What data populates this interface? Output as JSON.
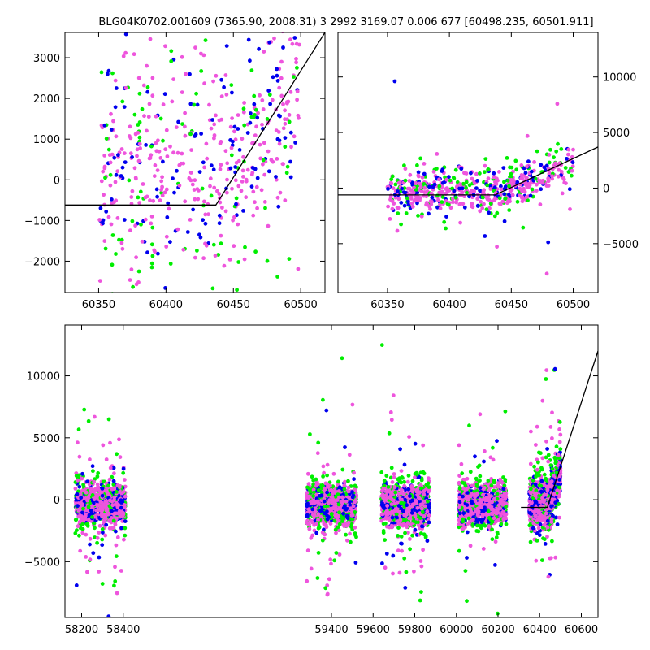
{
  "title": "BLG04K0702.001609 (7365.90, 2008.31)    3 2992 3169.07 0.006 677 [60498.235, 60501.911]",
  "colors": {
    "series_1": "#0000ee",
    "series_2": "#00ee00",
    "series_3": "#ee55dd",
    "model": "#000000"
  },
  "chart_data": [
    {
      "type": "scatter",
      "panel": "top-left",
      "xlim": [
        60325,
        60518
      ],
      "ylim": [
        -2770,
        3620
      ],
      "xticks": [
        60350,
        60400,
        60450,
        60500
      ],
      "xticklabels": [
        "60350",
        "60400",
        "60450",
        "60500"
      ],
      "yticks": [
        -2000,
        -1000,
        0,
        1000,
        2000,
        3000
      ],
      "yticklabels": [
        "−2000",
        "−1000",
        "0",
        "1000",
        "2000",
        "3000"
      ],
      "yaxis_side": "left",
      "model": [
        [
          60325,
          -620
        ],
        [
          60437,
          -620
        ],
        [
          60518,
          3620
        ]
      ],
      "clusters": [
        {
          "x_range": [
            60350,
            60500
          ],
          "y_center": 200,
          "y_spread": 1300,
          "trend": true
        }
      ]
    },
    {
      "type": "scatter",
      "panel": "top-right",
      "xlim": [
        60310,
        60520
      ],
      "ylim": [
        -9400,
        14000
      ],
      "xticks": [
        60350,
        60400,
        60450,
        60500
      ],
      "xticklabels": [
        "60350",
        "60400",
        "60450",
        "60500"
      ],
      "yticks": [
        -5000,
        0,
        5000,
        10000
      ],
      "yticklabels": [
        "−5000",
        "0",
        "5000",
        "10000"
      ],
      "yaxis_side": "right",
      "model": [
        [
          60310,
          -620
        ],
        [
          60437,
          -620
        ],
        [
          60520,
          3700
        ]
      ],
      "clusters": [
        {
          "x_range": [
            60350,
            60500
          ],
          "y_center": -300,
          "y_spread": 900,
          "trend": true
        }
      ]
    },
    {
      "type": "scatter",
      "panel": "bottom",
      "xlim": [
        58120,
        60680
      ],
      "ylim": [
        -9500,
        14100
      ],
      "xticks": [
        58200,
        58400,
        59400,
        59600,
        59800,
        60000,
        60200,
        60400,
        60600
      ],
      "xticklabels": [
        "58200",
        "58400",
        "59400",
        "59600",
        "59800",
        "60000",
        "60200",
        "60400",
        "60600"
      ],
      "yticks": [
        -5000,
        0,
        5000,
        10000
      ],
      "yticklabels": [
        "−5000",
        "0",
        "5000",
        "10000"
      ],
      "yaxis_side": "left",
      "model": [
        [
          60310,
          -620
        ],
        [
          60437,
          -620
        ],
        [
          60680,
          12000
        ]
      ],
      "clusters": [
        {
          "x_range": [
            58170,
            58410
          ],
          "y_center": -400,
          "y_spread": 700
        },
        {
          "x_range": [
            59280,
            59520
          ],
          "y_center": -400,
          "y_spread": 700
        },
        {
          "x_range": [
            59640,
            59870
          ],
          "y_center": -500,
          "y_spread": 750
        },
        {
          "x_range": [
            60010,
            60240
          ],
          "y_center": -400,
          "y_spread": 700
        },
        {
          "x_range": [
            60350,
            60500
          ],
          "y_center": -300,
          "y_spread": 900,
          "trend": true
        }
      ]
    }
  ]
}
